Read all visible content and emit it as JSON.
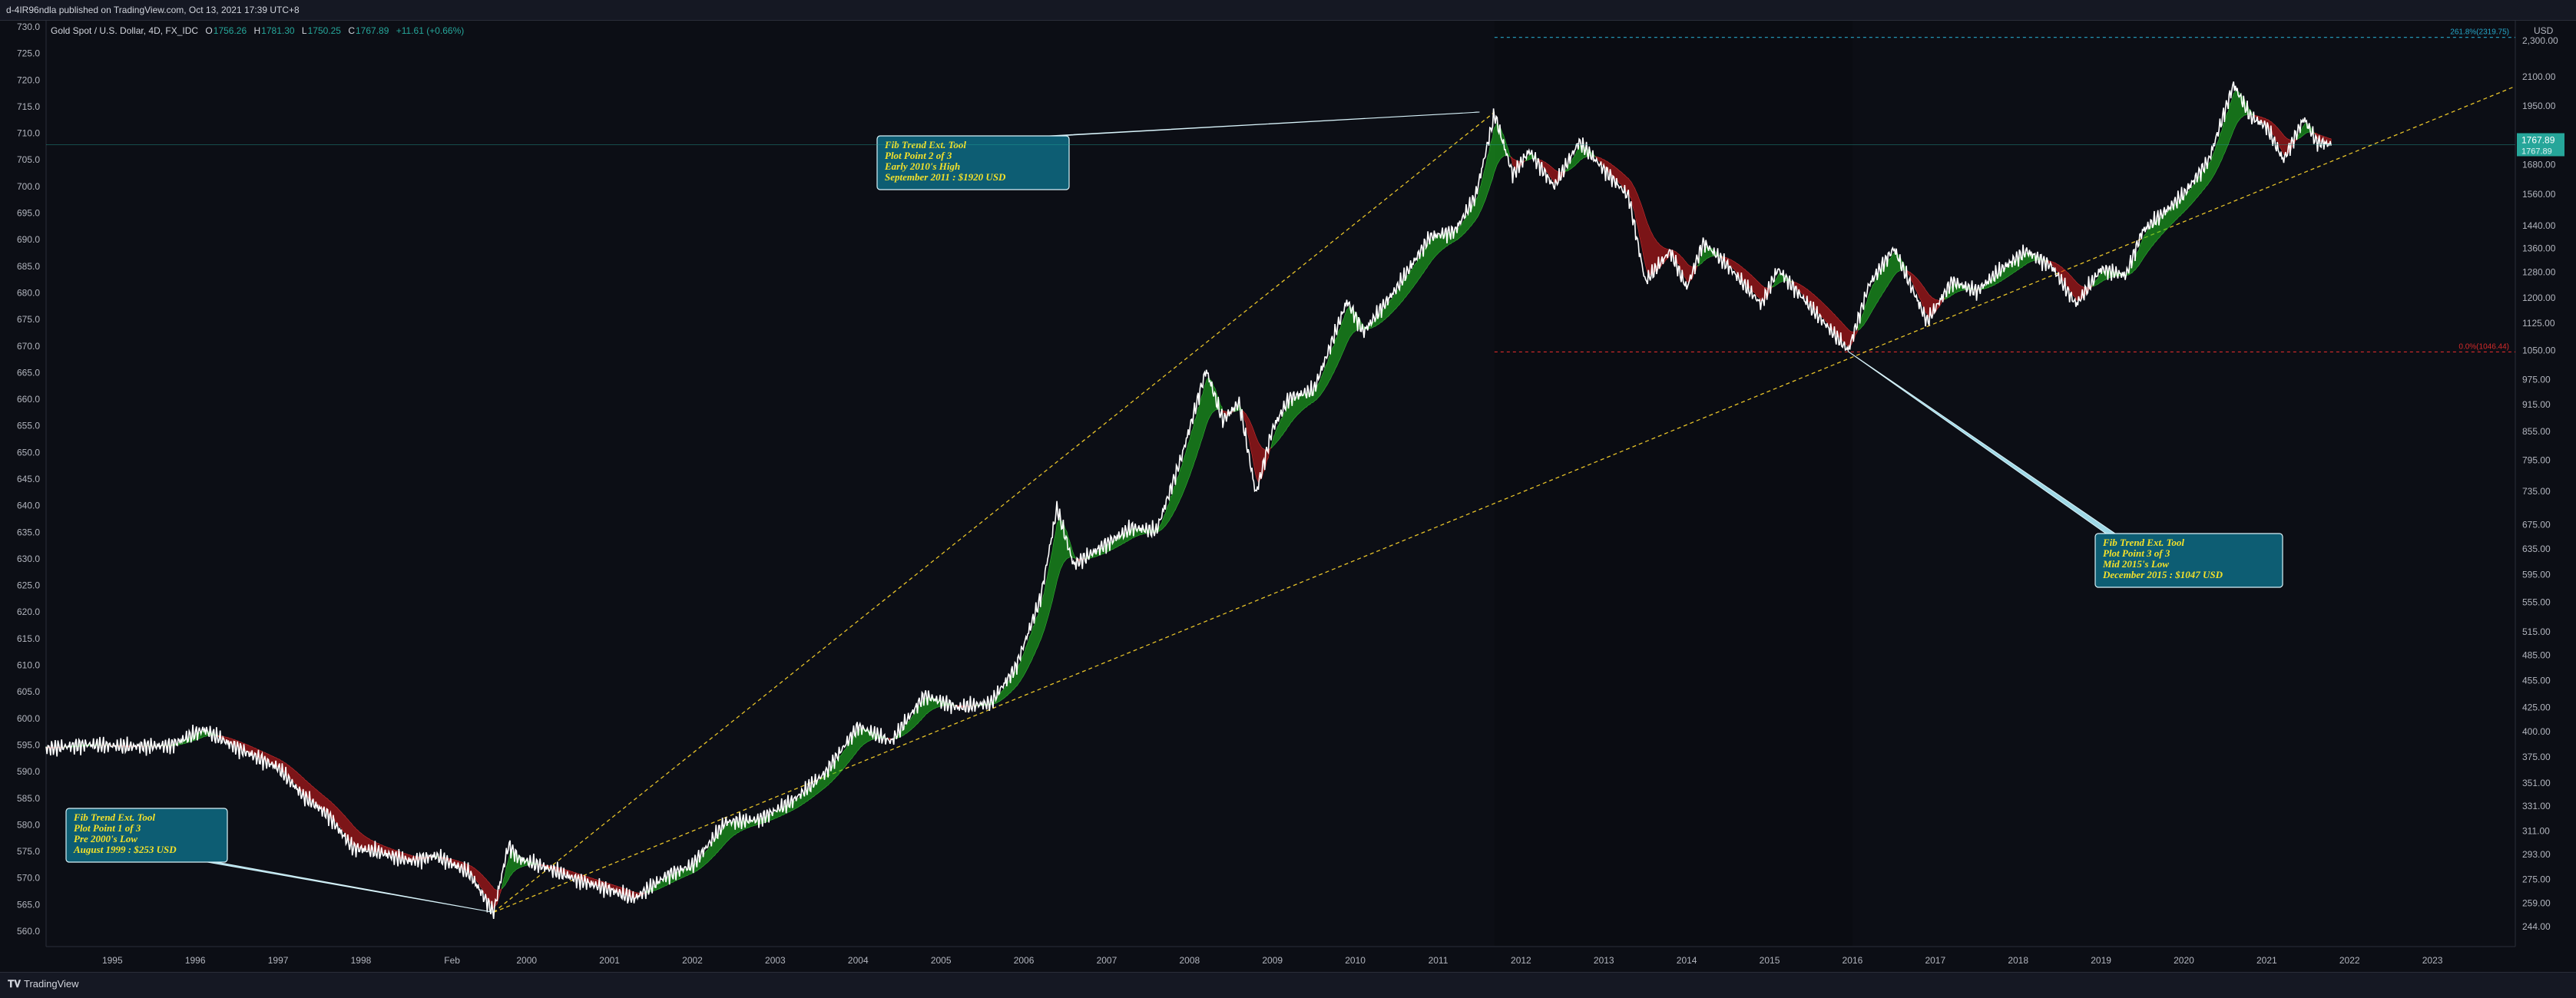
{
  "header": {
    "publisher_text": "d-4IR96ndla published on TradingView.com, Oct 13, 2021 17:39 UTC+8"
  },
  "legend": {
    "symbol_text": "Gold Spot / U.S. Dollar, 4D, FX_IDC",
    "open_label": "O",
    "open_value": "1756.26",
    "high_label": "H",
    "high_value": "1781.30",
    "low_label": "L",
    "low_value": "1750.25",
    "close_label": "C",
    "close_value": "1767.89",
    "change_text": "+11.61 (+0.66%)"
  },
  "footer": {
    "brand": "TradingView",
    "logo_icon": "tradingview-logo-icon"
  },
  "colors": {
    "background": "#0c0e15",
    "price_line": "#ffffff",
    "ribbon_bull": "#1fc11f",
    "ribbon_bear": "#d91c1c",
    "trend_line": "#e6c229",
    "callout_fill": "#0d5d73",
    "callout_text": "#f4e12a",
    "fib_top": "#26a6c8",
    "fib_low": "#d62a2a"
  },
  "chart_data": {
    "type": "line",
    "title": "",
    "xlabel": "",
    "ylabel": "",
    "x_range": [
      1994.2,
      2024.0
    ],
    "x_ticks": [
      {
        "x": 1995,
        "label": "1995"
      },
      {
        "x": 1996,
        "label": "1996"
      },
      {
        "x": 1997,
        "label": "1997"
      },
      {
        "x": 1998,
        "label": "1998"
      },
      {
        "x": 1999.1,
        "label": "Feb"
      },
      {
        "x": 2000,
        "label": "2000"
      },
      {
        "x": 2001,
        "label": "2001"
      },
      {
        "x": 2002,
        "label": "2002"
      },
      {
        "x": 2003,
        "label": "2003"
      },
      {
        "x": 2004,
        "label": "2004"
      },
      {
        "x": 2005,
        "label": "2005"
      },
      {
        "x": 2006,
        "label": "2006"
      },
      {
        "x": 2007,
        "label": "2007"
      },
      {
        "x": 2008,
        "label": "2008"
      },
      {
        "x": 2009,
        "label": "2009"
      },
      {
        "x": 2010,
        "label": "2010"
      },
      {
        "x": 2011,
        "label": "2011"
      },
      {
        "x": 2012,
        "label": "2012"
      },
      {
        "x": 2013,
        "label": "2013"
      },
      {
        "x": 2014,
        "label": "2014"
      },
      {
        "x": 2015,
        "label": "2015"
      },
      {
        "x": 2016,
        "label": "2016"
      },
      {
        "x": 2017,
        "label": "2017"
      },
      {
        "x": 2018,
        "label": "2018"
      },
      {
        "x": 2019,
        "label": "2019"
      },
      {
        "x": 2020,
        "label": "2020"
      },
      {
        "x": 2021,
        "label": "2021"
      },
      {
        "x": 2022,
        "label": "2022"
      },
      {
        "x": 2023,
        "label": "2023"
      }
    ],
    "left_axis_ticks": [
      "730.0",
      "725.0",
      "720.0",
      "715.0",
      "710.0",
      "705.0",
      "700.0",
      "695.0",
      "690.0",
      "685.0",
      "680.0",
      "675.0",
      "670.0",
      "665.0",
      "660.0",
      "655.0",
      "650.0",
      "645.0",
      "640.0",
      "635.0",
      "630.0",
      "625.0",
      "620.0",
      "615.0",
      "610.0",
      "605.0",
      "600.0",
      "595.0",
      "590.0",
      "585.0",
      "580.0",
      "575.0",
      "570.0",
      "565.0",
      "560.0"
    ],
    "right_axis": {
      "unit": "USD",
      "scale": "log",
      "ticks": [
        "2,300.00",
        "2100.00",
        "1950.00",
        "1800.00",
        "1680.00",
        "1560.00",
        "1440.00",
        "1360.00",
        "1280.00",
        "1200.00",
        "1125.00",
        "1050.00",
        "975.00",
        "915.00",
        "855.00",
        "795.00",
        "735.00",
        "675.00",
        "635.00",
        "595.00",
        "555.00",
        "515.00",
        "485.00",
        "455.00",
        "425.00",
        "400.00",
        "375.00",
        "351.00",
        "331.00",
        "311.00",
        "293.00",
        "275.00",
        "259.00",
        "244.00"
      ],
      "price_tag": "1767.89",
      "price_tag_sub": "1767.89"
    },
    "y_range_usd": [
      232,
      2420
    ],
    "series": [
      {
        "values": [
          [
            1994.2,
            383
          ],
          [
            1994.7,
            387
          ],
          [
            1995.2,
            385
          ],
          [
            1995.7,
            386
          ],
          [
            1996.1,
            402
          ],
          [
            1996.5,
            384
          ],
          [
            1997.0,
            365
          ],
          [
            1997.3,
            340
          ],
          [
            1997.6,
            324
          ],
          [
            1997.9,
            298
          ],
          [
            1998.2,
            295
          ],
          [
            1998.6,
            288
          ],
          [
            1998.9,
            292
          ],
          [
            1999.3,
            280
          ],
          [
            1999.6,
            253
          ],
          [
            1999.78,
            300
          ],
          [
            1999.9,
            290
          ],
          [
            2000.3,
            282
          ],
          [
            2000.6,
            275
          ],
          [
            2001.0,
            268
          ],
          [
            2001.3,
            262
          ],
          [
            2001.7,
            278
          ],
          [
            2002.0,
            285
          ],
          [
            2002.4,
            318
          ],
          [
            2002.8,
            320
          ],
          [
            2003.2,
            335
          ],
          [
            2003.6,
            360
          ],
          [
            2004.0,
            405
          ],
          [
            2004.4,
            390
          ],
          [
            2004.8,
            438
          ],
          [
            2005.2,
            425
          ],
          [
            2005.6,
            430
          ],
          [
            2005.9,
            470
          ],
          [
            2006.2,
            560
          ],
          [
            2006.4,
            705
          ],
          [
            2006.6,
            610
          ],
          [
            2006.9,
            635
          ],
          [
            2007.3,
            670
          ],
          [
            2007.6,
            665
          ],
          [
            2007.9,
            800
          ],
          [
            2008.2,
            1000
          ],
          [
            2008.4,
            880
          ],
          [
            2008.6,
            920
          ],
          [
            2008.8,
            730
          ],
          [
            2009.0,
            860
          ],
          [
            2009.2,
            930
          ],
          [
            2009.5,
            950
          ],
          [
            2009.9,
            1190
          ],
          [
            2010.1,
            1100
          ],
          [
            2010.5,
            1230
          ],
          [
            2010.9,
            1400
          ],
          [
            2011.2,
            1420
          ],
          [
            2011.45,
            1550
          ],
          [
            2011.68,
            1910
          ],
          [
            2011.9,
            1640
          ],
          [
            2012.1,
            1740
          ],
          [
            2012.4,
            1590
          ],
          [
            2012.7,
            1780
          ],
          [
            2012.9,
            1700
          ],
          [
            2013.3,
            1550
          ],
          [
            2013.5,
            1250
          ],
          [
            2013.8,
            1350
          ],
          [
            2014.0,
            1230
          ],
          [
            2014.2,
            1380
          ],
          [
            2014.5,
            1300
          ],
          [
            2014.9,
            1180
          ],
          [
            2015.1,
            1290
          ],
          [
            2015.5,
            1170
          ],
          [
            2015.95,
            1050
          ],
          [
            2016.2,
            1240
          ],
          [
            2016.5,
            1360
          ],
          [
            2016.9,
            1130
          ],
          [
            2017.2,
            1250
          ],
          [
            2017.5,
            1220
          ],
          [
            2017.8,
            1290
          ],
          [
            2018.1,
            1350
          ],
          [
            2018.4,
            1300
          ],
          [
            2018.7,
            1180
          ],
          [
            2019.0,
            1290
          ],
          [
            2019.3,
            1270
          ],
          [
            2019.5,
            1420
          ],
          [
            2019.8,
            1500
          ],
          [
            2020.0,
            1560
          ],
          [
            2020.3,
            1700
          ],
          [
            2020.6,
            2060
          ],
          [
            2020.8,
            1900
          ],
          [
            2021.0,
            1850
          ],
          [
            2021.2,
            1700
          ],
          [
            2021.45,
            1890
          ],
          [
            2021.6,
            1780
          ],
          [
            2021.78,
            1768
          ]
        ]
      }
    ],
    "trend_lines": [
      {
        "from": [
          1999.6,
          253
        ],
        "to": [
          2011.68,
          1920
        ]
      },
      {
        "from": [
          1999.6,
          253
        ],
        "to": [
          2024.0,
          2050
        ]
      }
    ],
    "fib_levels": [
      {
        "label": "261.8%(2319.75)",
        "value": 2320,
        "color": "#26a6c8"
      },
      {
        "label": "0.0%(1046.44)",
        "value": 1046,
        "color": "#d62a2a"
      }
    ],
    "callouts": [
      {
        "anchor": [
          1999.6,
          253
        ],
        "lines": [
          "Fib Trend Ext. Tool",
          "Plot Point 1 of 3",
          "Pre 2000's Low",
          "August 1999 : $253 USD"
        ]
      },
      {
        "anchor": [
          2011.5,
          1920
        ],
        "lines": [
          "Fib Trend Ext. Tool",
          "Plot Point 2 of 3",
          "Early 2010's High",
          "September 2011 : $1920 USD"
        ]
      },
      {
        "anchor": [
          2015.95,
          1047
        ],
        "lines": [
          "Fib Trend Ext. Tool",
          "Plot Point 3 of 3",
          "Mid 2015's Low",
          "December 2015 : $1047 USD"
        ]
      }
    ]
  }
}
